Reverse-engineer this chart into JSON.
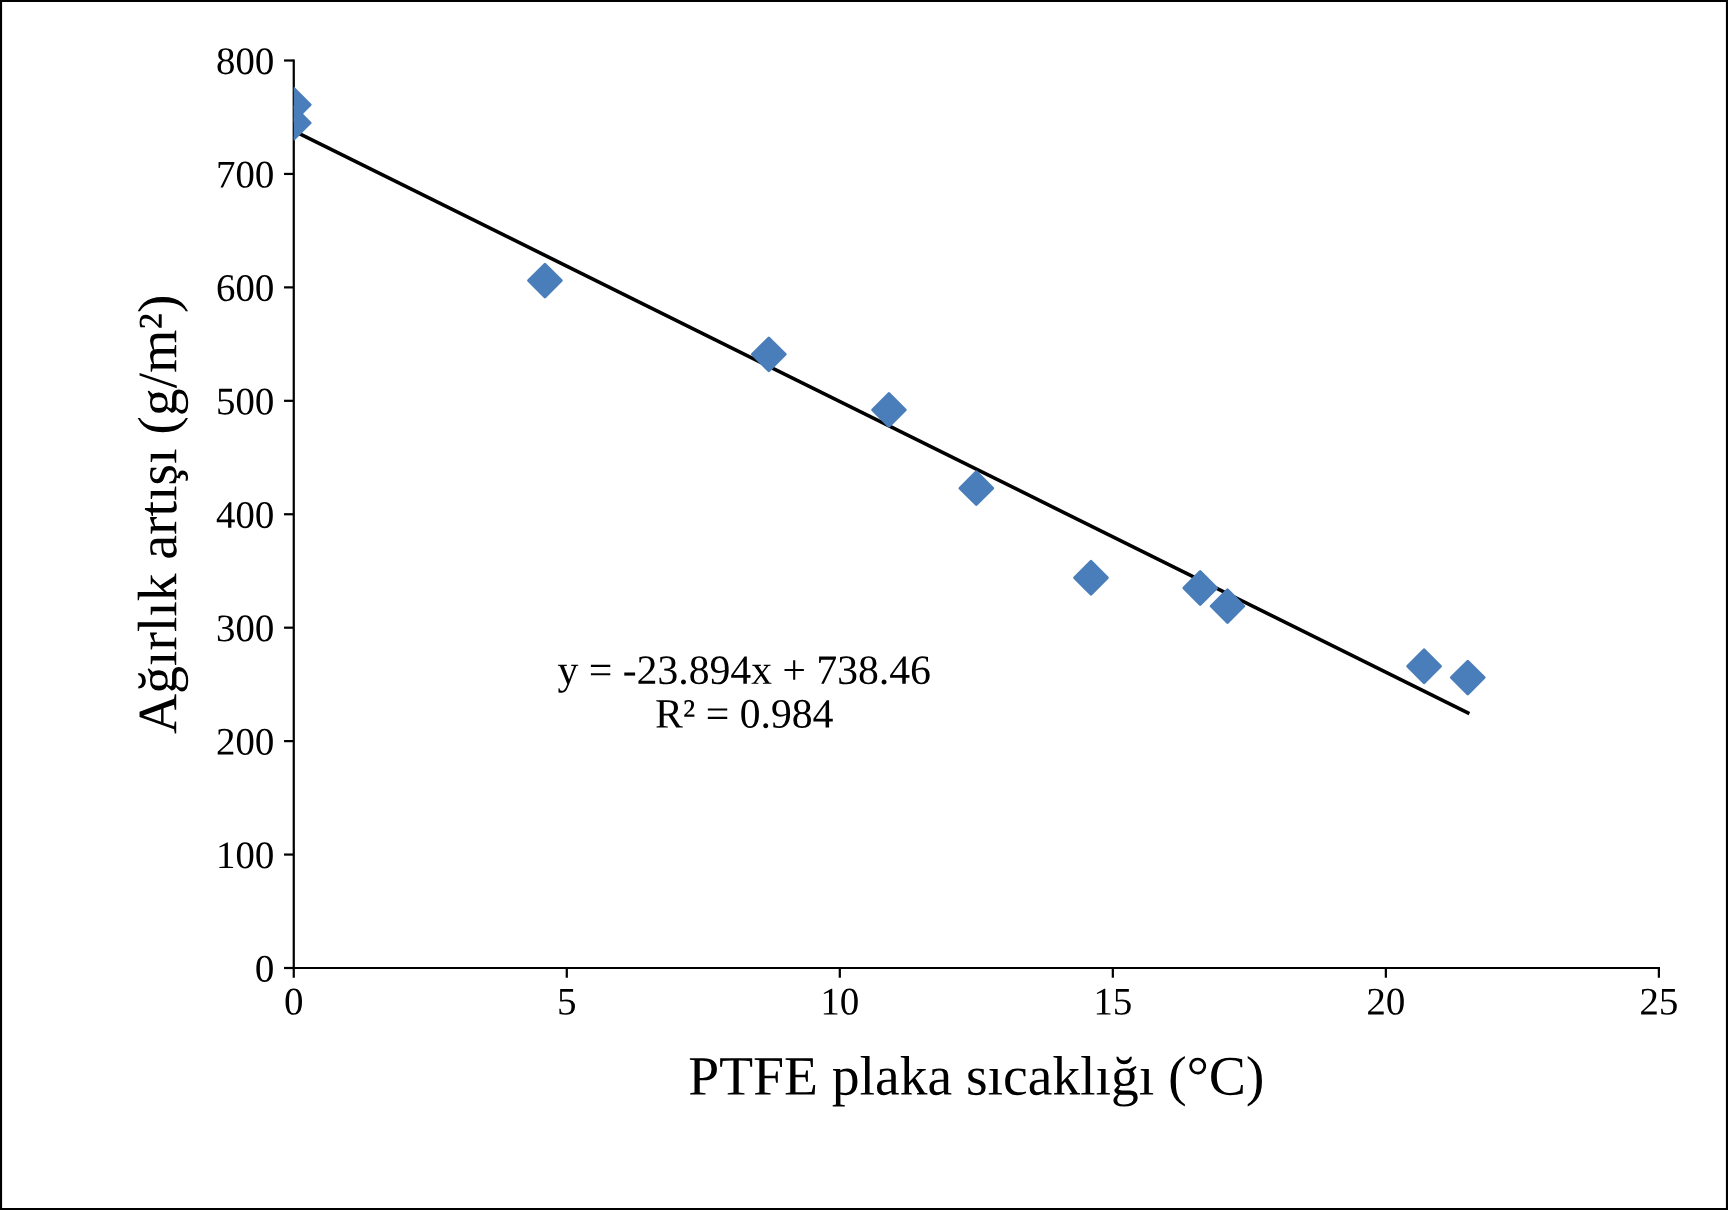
{
  "chart_data": {
    "type": "scatter",
    "xlabel": "PTFE plaka sıcaklığı (°C)",
    "ylabel": "Ağırlık artışı (g/m²)",
    "xlim": [
      0,
      25
    ],
    "xticks": [
      0,
      5,
      10,
      15,
      20,
      25
    ],
    "ylim": [
      0,
      800
    ],
    "yticks": [
      0,
      100,
      200,
      300,
      400,
      500,
      600,
      700,
      800
    ],
    "grid": false,
    "legend": false,
    "series": [
      {
        "marker": "diamond",
        "color": "#4a7ebb",
        "x": [
          0,
          0,
          4.6,
          8.7,
          10.9,
          12.5,
          14.6,
          16.6,
          17.1,
          20.7,
          21.5
        ],
        "values": [
          761,
          745,
          606,
          541,
          492,
          423,
          344,
          335,
          319,
          266,
          256
        ]
      },
      {
        "type": "line",
        "marker": "none",
        "color": "#000000",
        "x": [
          0,
          21.5
        ],
        "values": [
          738,
          225
        ]
      }
    ],
    "annotations": [
      "y = -23.894x + 738.46\nR² = 0.984"
    ]
  }
}
